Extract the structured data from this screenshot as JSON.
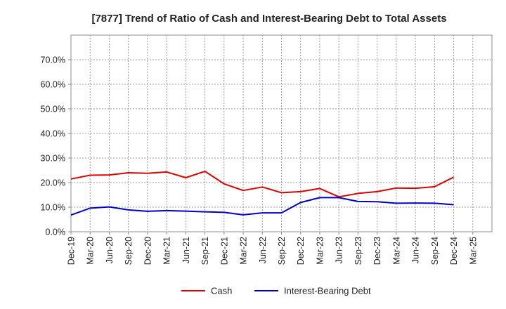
{
  "chart_data": {
    "type": "line",
    "title": "[7877]  Trend of Ratio of Cash and Interest-Bearing Debt to Total Assets",
    "xlabel": "",
    "ylabel": "",
    "categories": [
      "Dec-19",
      "Mar-20",
      "Jun-20",
      "Sep-20",
      "Dec-20",
      "Mar-21",
      "Jun-21",
      "Sep-21",
      "Dec-21",
      "Mar-22",
      "Jun-22",
      "Sep-22",
      "Dec-22",
      "Mar-23",
      "Jun-23",
      "Sep-23",
      "Dec-23",
      "Mar-24",
      "Jun-24",
      "Sep-24",
      "Dec-24",
      "Mar-25"
    ],
    "y_ticks": [
      "0.0%",
      "10.0%",
      "20.0%",
      "30.0%",
      "40.0%",
      "50.0%",
      "60.0%",
      "70.0%"
    ],
    "ylim": [
      0,
      80
    ],
    "grid": true,
    "legend_position": "bottom",
    "series": [
      {
        "name": "Cash",
        "color": "#e00000",
        "values": [
          21.5,
          23.0,
          23.1,
          24.0,
          23.8,
          24.3,
          22.0,
          24.6,
          19.5,
          16.8,
          18.2,
          15.9,
          16.3,
          17.6,
          14.2,
          15.6,
          16.3,
          17.8,
          17.7,
          18.3,
          22.2,
          null
        ]
      },
      {
        "name": "Interest-Bearing Debt",
        "color": "#0000cc",
        "values": [
          6.8,
          9.6,
          10.1,
          8.9,
          8.3,
          8.6,
          8.4,
          8.1,
          7.9,
          6.9,
          7.7,
          7.7,
          11.9,
          13.9,
          13.9,
          12.3,
          12.2,
          11.6,
          11.7,
          11.6,
          11.0,
          null
        ]
      }
    ]
  }
}
